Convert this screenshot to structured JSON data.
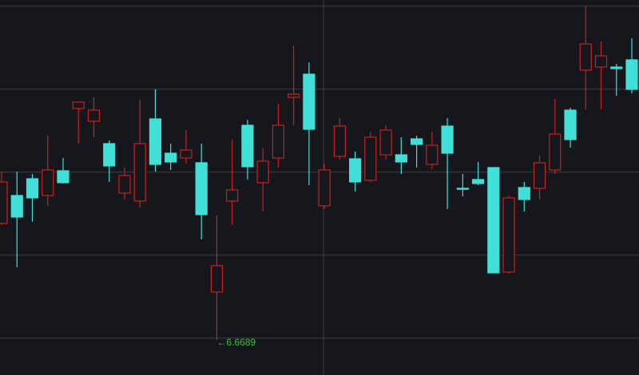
{
  "chart_data": {
    "type": "candlestick",
    "open": [
      6.7419,
      6.7594,
      6.7699,
      6.7594,
      6.7749,
      6.8139,
      6.8059,
      6.7919,
      6.7609,
      6.7559,
      6.8074,
      6.7859,
      6.7829,
      6.7799,
      6.6989,
      6.7559,
      6.8034,
      6.7674,
      6.7829,
      6.8209,
      6.8354,
      6.7529,
      6.7839,
      6.7824,
      6.7689,
      6.7849,
      6.7849,
      6.7949,
      6.7789,
      6.8029,
      6.7639,
      6.7694,
      6.7769,
      6.7114,
      6.7644,
      6.7639,
      6.7754,
      6.8129,
      6.8379,
      6.8399,
      6.8399,
      6.8444
    ],
    "high": [
      6.7744,
      6.7744,
      6.7729,
      6.7969,
      6.7829,
      6.8179,
      6.8209,
      6.7939,
      6.7769,
      6.8194,
      6.8259,
      6.7919,
      6.8004,
      6.7919,
      6.7469,
      6.7944,
      6.8069,
      6.7889,
      6.8169,
      6.8534,
      6.8429,
      6.7794,
      6.8079,
      6.7869,
      6.7994,
      6.8034,
      6.7959,
      6.7969,
      6.7994,
      6.8079,
      6.7729,
      6.7804,
      6.7769,
      6.7594,
      6.7679,
      6.7844,
      6.8199,
      6.8144,
      6.8779,
      6.8559,
      6.8419,
      6.8579
    ],
    "low": [
      6.7409,
      6.7144,
      6.7429,
      6.7529,
      6.7669,
      6.7919,
      6.7959,
      6.7679,
      6.7569,
      6.7519,
      6.7744,
      6.7754,
      6.7794,
      6.7319,
      6.6689,
      6.7409,
      6.7694,
      6.7494,
      6.7769,
      6.8034,
      6.7659,
      6.7509,
      6.7819,
      6.7619,
      6.7679,
      6.7819,
      6.7729,
      6.7769,
      6.7759,
      6.7509,
      6.7589,
      6.7659,
      6.7109,
      6.7104,
      6.7494,
      6.7569,
      6.7729,
      6.7894,
      6.8134,
      6.8134,
      6.8219,
      6.8234
    ],
    "close": [
      6.7679,
      6.7459,
      6.7579,
      6.7754,
      6.7674,
      6.8179,
      6.8129,
      6.7779,
      6.7719,
      6.7919,
      6.7789,
      6.7804,
      6.7879,
      6.7474,
      6.7154,
      6.7629,
      6.7774,
      6.7809,
      6.8034,
      6.8229,
      6.8009,
      6.7754,
      6.8029,
      6.7679,
      6.7959,
      6.8004,
      6.7804,
      6.7914,
      6.7909,
      6.7859,
      6.7634,
      6.7669,
      6.7109,
      6.7579,
      6.7569,
      6.7799,
      6.7979,
      6.7944,
      6.8544,
      6.8469,
      6.8389,
      6.8259
    ],
    "up_color": "#c8201e",
    "down_color": "#40e0d8",
    "ylim": [
      6.6469,
      6.8819
    ],
    "yticks": [
      6.67,
      6.722,
      6.774,
      6.826,
      6.878
    ],
    "grid": true,
    "low_label": "←6.6689",
    "low_label_color": "#3cbf3c"
  }
}
